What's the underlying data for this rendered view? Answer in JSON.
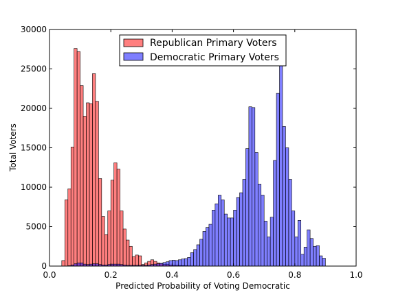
{
  "chart_data": {
    "type": "histogram",
    "xlabel": "Predicted Probability of Voting Democratic",
    "ylabel": "Total Voters",
    "xlim": [
      0.0,
      1.0
    ],
    "ylim": [
      0,
      30000
    ],
    "xticks": [
      "0.0",
      "0.2",
      "0.4",
      "0.6",
      "0.8",
      "1.0"
    ],
    "yticks": [
      "0",
      "5000",
      "10000",
      "15000",
      "20000",
      "25000",
      "30000"
    ],
    "grid": false,
    "legend_position": "top-center",
    "bin_width": 0.01,
    "bin_start": 0.04,
    "series": [
      {
        "name": "Republican Primary Voters",
        "color": "#ff0000",
        "opacity": 0.5,
        "values": [
          700,
          8400,
          9800,
          15100,
          27600,
          27200,
          22900,
          19000,
          20700,
          20600,
          24400,
          20900,
          11100,
          6300,
          4000,
          7000,
          10900,
          13100,
          12300,
          7000,
          4700,
          3300,
          2500,
          1200,
          1400,
          1300,
          200,
          400,
          600,
          800,
          600,
          400,
          300,
          200,
          200,
          150,
          100,
          100,
          80,
          60,
          50,
          40,
          30,
          30,
          20,
          20,
          15,
          15,
          10,
          10,
          10,
          10,
          10,
          10,
          10,
          10,
          10,
          10,
          10,
          10,
          10,
          10,
          10,
          10,
          10,
          10,
          10,
          10,
          10,
          10,
          10,
          10,
          10,
          10,
          10,
          10,
          10,
          10,
          10,
          10,
          10,
          10,
          10,
          10,
          10,
          10,
          10
        ]
      },
      {
        "name": "Democratic Primary Voters",
        "color": "#0000ff",
        "opacity": 0.5,
        "values": [
          0,
          0,
          50,
          150,
          300,
          400,
          400,
          250,
          200,
          250,
          300,
          300,
          200,
          150,
          150,
          200,
          250,
          250,
          250,
          200,
          150,
          100,
          100,
          100,
          100,
          100,
          100,
          100,
          150,
          200,
          250,
          300,
          350,
          450,
          550,
          700,
          750,
          700,
          800,
          900,
          950,
          1100,
          1700,
          2100,
          2700,
          3400,
          4400,
          4900,
          5300,
          7100,
          7900,
          9000,
          8400,
          6600,
          6100,
          6100,
          7100,
          8700,
          9300,
          11000,
          14900,
          20200,
          20100,
          14400,
          10400,
          9000,
          5700,
          3700,
          6200,
          13400,
          21900,
          27900,
          17700,
          15000,
          11000,
          7000,
          3700,
          5800,
          1500,
          2400,
          4600,
          3500,
          2500,
          2600,
          1300,
          1000,
          0
        ]
      }
    ]
  }
}
